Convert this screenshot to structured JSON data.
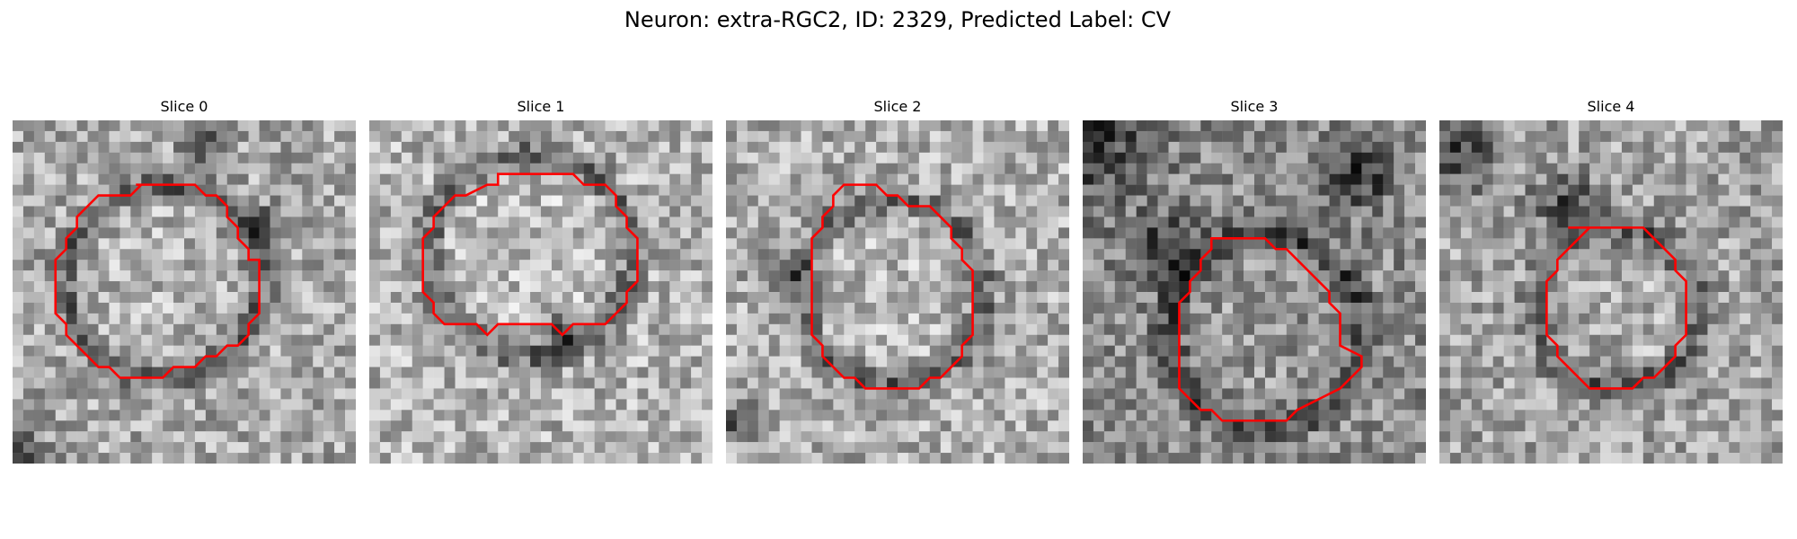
{
  "figure": {
    "title": "Neuron: extra-RGC2, ID: 2329, Predicted Label: CV"
  },
  "panels": [
    {
      "title": "Slice 0"
    },
    {
      "title": "Slice 1"
    },
    {
      "title": "Slice 2"
    },
    {
      "title": "Slice 3"
    },
    {
      "title": "Slice 4"
    }
  ],
  "colors": {
    "contour": "#ff0000",
    "colormap": "grayscale"
  }
}
